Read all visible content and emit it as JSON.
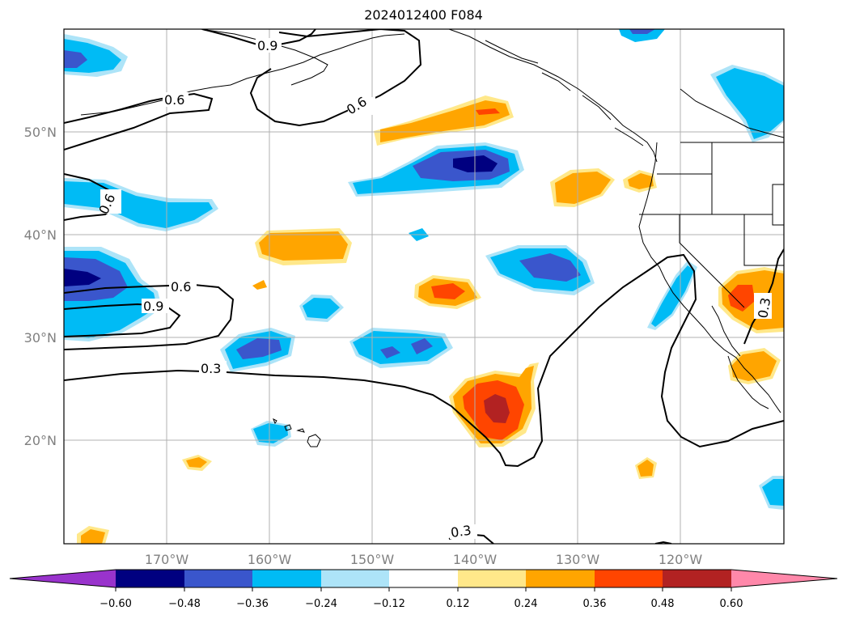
{
  "title": "2024012400 F084",
  "map": {
    "longitude_labels": [
      "170°W",
      "160°W",
      "150°W",
      "140°W",
      "130°W",
      "120°W"
    ],
    "latitude_labels": [
      "50°N",
      "40°N",
      "30°N",
      "20°N"
    ],
    "grid_color": "#b0b0b0",
    "coastline_color": "#000000"
  },
  "contours": {
    "color": "#000000",
    "labels": [
      {
        "text": "0.9"
      },
      {
        "text": "0.6"
      },
      {
        "text": "0.6"
      },
      {
        "text": "0.6"
      },
      {
        "text": "0.6"
      },
      {
        "text": "0.9"
      },
      {
        "text": "0.3"
      },
      {
        "text": "0.3"
      },
      {
        "text": "0.3"
      }
    ]
  },
  "colorbar": {
    "tick_labels": [
      "−0.60",
      "−0.48",
      "−0.36",
      "−0.24",
      "−0.12",
      "0.12",
      "0.24",
      "0.36",
      "0.48",
      "0.60"
    ],
    "colors": [
      "#9933cc",
      "#000080",
      "#3a56cc",
      "#00bbf5",
      "#ade4f8",
      "#ffffff",
      "#ffe88a",
      "#ffa500",
      "#ff4500",
      "#b22222",
      "#ff88aa"
    ]
  }
}
